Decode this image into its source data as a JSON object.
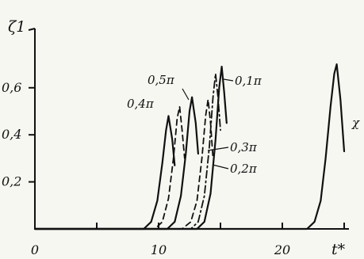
{
  "chart_data": {
    "type": "line",
    "xlabel": "t*",
    "ylabel": "ζ1",
    "xlim": [
      0,
      26
    ],
    "ylim": [
      0,
      0.7
    ],
    "x_ticks": [
      0,
      5,
      10,
      15,
      20,
      25
    ],
    "x_tick_labels": [
      "0",
      "",
      "10",
      "",
      "20",
      ""
    ],
    "y_ticks": [
      0.2,
      0.4,
      0.6
    ],
    "y_tick_labels": [
      "0,2",
      "0,4",
      "0,6"
    ],
    "grid": false,
    "legend": "none",
    "series": [
      {
        "name": "0,4π",
        "style": "solid",
        "points": [
          [
            8.8,
            0.0
          ],
          [
            9.4,
            0.03
          ],
          [
            9.9,
            0.12
          ],
          [
            10.3,
            0.28
          ],
          [
            10.6,
            0.42
          ],
          [
            10.8,
            0.48
          ],
          [
            11.1,
            0.38
          ],
          [
            11.3,
            0.27
          ]
        ]
      },
      {
        "name": "0,5π",
        "style": "dashed",
        "points": [
          [
            9.7,
            0.0
          ],
          [
            10.3,
            0.03
          ],
          [
            10.8,
            0.13
          ],
          [
            11.2,
            0.3
          ],
          [
            11.5,
            0.47
          ],
          [
            11.7,
            0.52
          ],
          [
            11.9,
            0.42
          ],
          [
            12.1,
            0.3
          ]
        ]
      },
      {
        "name": "",
        "style": "solid",
        "points": [
          [
            10.7,
            0.0
          ],
          [
            11.3,
            0.03
          ],
          [
            11.8,
            0.14
          ],
          [
            12.2,
            0.32
          ],
          [
            12.5,
            0.5
          ],
          [
            12.7,
            0.56
          ],
          [
            13.0,
            0.45
          ],
          [
            13.2,
            0.32
          ]
        ]
      },
      {
        "name": "0,3π",
        "style": "dashed",
        "points": [
          [
            11.9,
            0.0
          ],
          [
            12.6,
            0.03
          ],
          [
            13.1,
            0.12
          ],
          [
            13.5,
            0.3
          ],
          [
            13.8,
            0.48
          ],
          [
            14.0,
            0.55
          ],
          [
            14.2,
            0.45
          ],
          [
            14.4,
            0.3
          ]
        ]
      },
      {
        "name": "0,2π",
        "style": "dashdot",
        "points": [
          [
            12.6,
            0.0
          ],
          [
            13.2,
            0.03
          ],
          [
            13.7,
            0.14
          ],
          [
            14.1,
            0.35
          ],
          [
            14.4,
            0.56
          ],
          [
            14.6,
            0.66
          ],
          [
            14.8,
            0.56
          ],
          [
            15.0,
            0.42
          ]
        ]
      },
      {
        "name": "0,1π",
        "style": "solid",
        "points": [
          [
            13.1,
            0.0
          ],
          [
            13.7,
            0.03
          ],
          [
            14.2,
            0.15
          ],
          [
            14.6,
            0.38
          ],
          [
            14.9,
            0.6
          ],
          [
            15.1,
            0.69
          ],
          [
            15.3,
            0.58
          ],
          [
            15.5,
            0.45
          ]
        ]
      },
      {
        "name": "χ",
        "style": "solid",
        "points": [
          [
            22.0,
            0.0
          ],
          [
            22.6,
            0.03
          ],
          [
            23.1,
            0.12
          ],
          [
            23.5,
            0.3
          ],
          [
            23.9,
            0.52
          ],
          [
            24.2,
            0.66
          ],
          [
            24.4,
            0.7
          ],
          [
            24.7,
            0.55
          ],
          [
            25.0,
            0.33
          ]
        ]
      }
    ]
  }
}
